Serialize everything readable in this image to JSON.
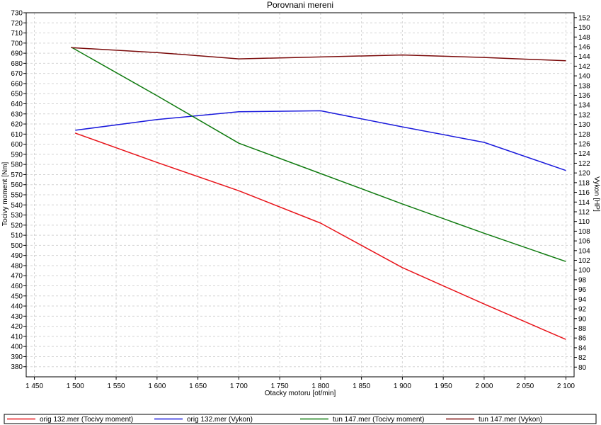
{
  "chart_data": {
    "type": "line",
    "title": "Porovnani mereni",
    "xlabel": "Otacky motoru [ot/min]",
    "ylabel_left": "Tocivy moment [Nm]",
    "ylabel_right": "Vykon [HP]",
    "xlim": [
      1440,
      2110
    ],
    "ylim_left": [
      370,
      730
    ],
    "ylim_right": [
      78,
      153
    ],
    "x_ticks": [
      1450,
      1500,
      1550,
      1600,
      1650,
      1700,
      1750,
      1800,
      1850,
      1900,
      1950,
      2000,
      2050,
      2100
    ],
    "x_tick_labels": [
      "1 450",
      "1 500",
      "1 550",
      "1 600",
      "1 650",
      "1 700",
      "1 750",
      "1 800",
      "1 850",
      "1 900",
      "1 950",
      "2 000",
      "2 050",
      "2 100"
    ],
    "y_left_ticks": [
      380,
      390,
      400,
      410,
      420,
      430,
      440,
      450,
      460,
      470,
      480,
      490,
      500,
      510,
      520,
      530,
      540,
      550,
      560,
      570,
      580,
      590,
      600,
      610,
      620,
      630,
      640,
      650,
      660,
      670,
      680,
      690,
      700,
      710,
      720,
      730
    ],
    "y_right_ticks": [
      80,
      82,
      84,
      86,
      88,
      90,
      92,
      94,
      96,
      98,
      100,
      102,
      104,
      106,
      108,
      110,
      112,
      114,
      116,
      118,
      120,
      122,
      124,
      126,
      128,
      130,
      132,
      134,
      136,
      138,
      140,
      142,
      144,
      146,
      148,
      150,
      152
    ],
    "grid": true,
    "legend_position": "bottom",
    "series": [
      {
        "name": "orig 132.mer  (Tocivy moment)",
        "axis": "left",
        "color": "#e8141a",
        "x": [
          1500,
          1600,
          1700,
          1800,
          1900,
          2000,
          2100
        ],
        "y": [
          611,
          582,
          554,
          522,
          478,
          442,
          407
        ]
      },
      {
        "name": "orig 132.mer  (Vykon)",
        "axis": "right",
        "color": "#1a1adc",
        "x": [
          1500,
          1600,
          1700,
          1800,
          1900,
          2000,
          2100
        ],
        "y": [
          128.8,
          131.0,
          132.6,
          132.8,
          129.5,
          126.3,
          120.5
        ]
      },
      {
        "name": "tun 147.mer  (Tocivy moment)",
        "axis": "left",
        "color": "#0f7a0f",
        "x": [
          1495,
          1600,
          1700,
          1800,
          1900,
          2000,
          2100
        ],
        "y": [
          696,
          648,
          601,
          571,
          541,
          512,
          484
        ]
      },
      {
        "name": "tun 147.mer  (Vykon)",
        "axis": "right",
        "color": "#7a0a0a",
        "x": [
          1495,
          1600,
          1700,
          1800,
          1900,
          2000,
          2100
        ],
        "y": [
          145.8,
          144.8,
          143.5,
          143.9,
          144.3,
          143.8,
          143.1
        ]
      }
    ]
  }
}
